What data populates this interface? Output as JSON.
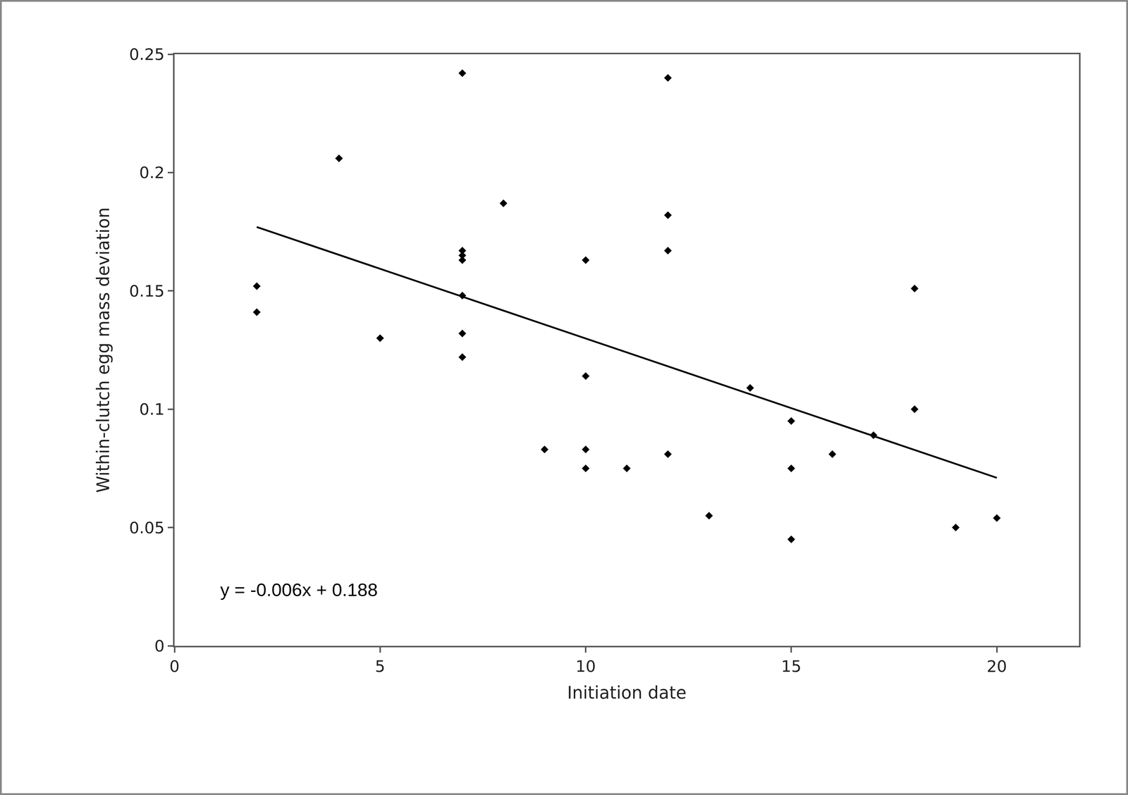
{
  "chart_data": {
    "type": "scatter",
    "x_label": "Initiation date",
    "y_label": "Within-clutch egg mass deviation",
    "xlim": [
      0,
      22
    ],
    "xticks": [
      0,
      5,
      10,
      15,
      20
    ],
    "ylim": [
      0,
      0.25
    ],
    "yticks": [
      0,
      0.05,
      0.1,
      0.15,
      0.2,
      0.25
    ],
    "grid": false,
    "series": [
      {
        "type": "scatter",
        "color": "#000000",
        "marker": "diamond",
        "x": [
          2,
          2,
          4,
          5,
          7,
          7,
          7,
          7,
          7,
          7,
          7,
          8,
          9,
          10,
          10,
          10,
          10,
          11,
          12,
          12,
          12,
          12,
          13,
          14,
          15,
          15,
          15,
          16,
          17,
          18,
          18,
          19,
          20
        ],
        "values": [
          0.152,
          0.141,
          0.206,
          0.13,
          0.242,
          0.167,
          0.165,
          0.163,
          0.148,
          0.132,
          0.122,
          0.187,
          0.083,
          0.163,
          0.114,
          0.083,
          0.075,
          0.075,
          0.24,
          0.182,
          0.167,
          0.081,
          0.055,
          0.109,
          0.095,
          0.075,
          0.045,
          0.081,
          0.089,
          0.151,
          0.1,
          0.05,
          0.054
        ]
      },
      {
        "type": "line",
        "color": "#000000",
        "line_style": "solid",
        "x": [
          2,
          20
        ],
        "values": [
          0.177,
          0.071
        ]
      }
    ],
    "annotations": [
      {
        "text": "y = -0.006x + 0.188"
      }
    ]
  }
}
